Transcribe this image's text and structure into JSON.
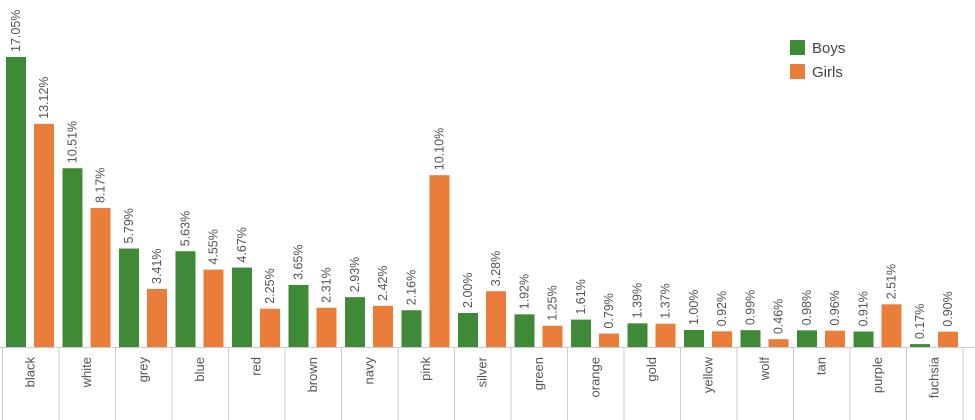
{
  "chart_data": {
    "type": "bar",
    "title": "",
    "xlabel": "",
    "ylabel": "",
    "ylim": [
      0,
      17.05
    ],
    "grid": false,
    "legend_position": "top-right",
    "categories": [
      "black",
      "white",
      "grey",
      "blue",
      "red",
      "brown",
      "navy",
      "pink",
      "silver",
      "green",
      "orange",
      "gold",
      "yellow",
      "wolf",
      "tan",
      "purple",
      "fuchsia"
    ],
    "series": [
      {
        "name": "Boys",
        "color": "#3f8a36",
        "values": [
          17.05,
          10.51,
          5.79,
          5.63,
          4.67,
          3.65,
          2.93,
          2.16,
          2.0,
          1.92,
          1.61,
          1.39,
          1.0,
          0.99,
          0.98,
          0.91,
          0.17
        ],
        "labels": [
          "17.05%",
          "10.51%",
          "5.79%",
          "5.63%",
          "4.67%",
          "3.65%",
          "2.93%",
          "2.16%",
          "2.00%",
          "1.92%",
          "1.61%",
          "1.39%",
          "1.00%",
          "0.99%",
          "0.98%",
          "0.91%",
          "0.17%"
        ]
      },
      {
        "name": "Girls",
        "color": "#ea7d3a",
        "values": [
          13.12,
          8.17,
          3.41,
          4.55,
          2.25,
          2.31,
          2.42,
          10.1,
          3.28,
          1.25,
          0.79,
          1.37,
          0.92,
          0.46,
          0.96,
          2.51,
          0.9
        ],
        "labels": [
          "13.12%",
          "8.17%",
          "3.41%",
          "4.55%",
          "2.25%",
          "2.31%",
          "2.42%",
          "10.10%",
          "3.28%",
          "1.25%",
          "0.79%",
          "1.37%",
          "0.92%",
          "0.46%",
          "0.96%",
          "2.51%",
          "0.90%"
        ]
      }
    ],
    "colors": {
      "axis_line": "#cccccc",
      "tick_line": "#cccccc",
      "label_text": "#555555"
    }
  }
}
